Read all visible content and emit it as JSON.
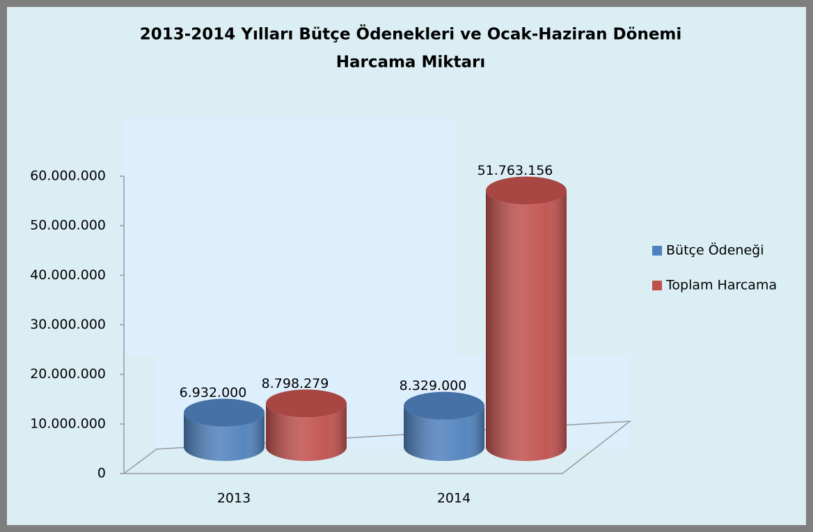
{
  "chart_data": {
    "type": "bar3d",
    "title": "2013-2014 Yılları Bütçe Ödenekleri ve Ocak-Haziran Dönemi",
    "subtitle": "Harcama Miktarı",
    "categories": [
      "2013",
      "2014"
    ],
    "series": [
      {
        "name": "Bütçe Ödeneği",
        "color": "#4f81bd",
        "values": [
          6932000,
          8329000
        ],
        "value_labels": [
          "6.932.000",
          "8.329.000"
        ]
      },
      {
        "name": "Toplam Harcama",
        "color": "#c0504d",
        "values": [
          8798279,
          51763156
        ],
        "value_labels": [
          "8.798.279",
          "51.763.156"
        ]
      }
    ],
    "ylim": [
      0,
      60000000
    ],
    "yticks": [
      0,
      {
        "value": 10000000,
        "label": "10.000.000"
      },
      {
        "value": 20000000,
        "label": "20.000.000"
      },
      {
        "value": 30000000,
        "label": "30.000.000"
      },
      {
        "value": 40000000,
        "label": "40.000.000"
      },
      {
        "value": 50000000,
        "label": "50.000.000"
      },
      {
        "value": 60000000,
        "label": "60.000.000"
      }
    ],
    "grid": false,
    "legend": "right"
  }
}
